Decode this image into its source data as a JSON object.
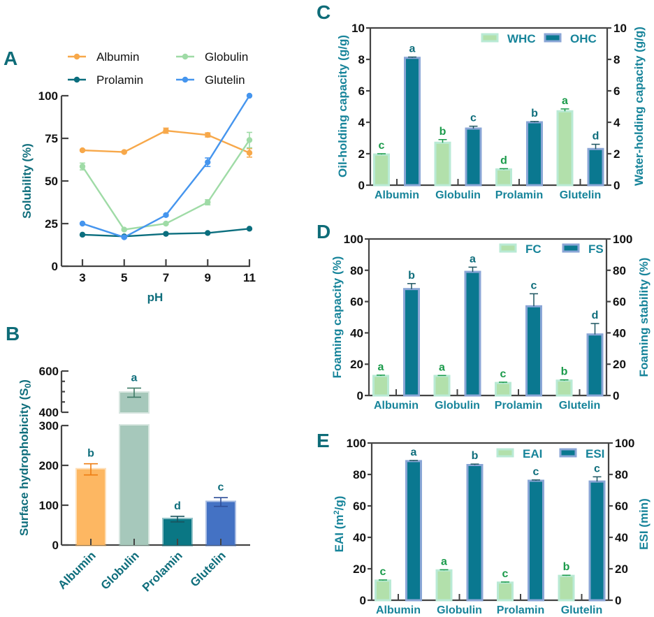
{
  "figure": {
    "panels": [
      "A",
      "B",
      "C",
      "D",
      "E"
    ]
  },
  "chart_data": [
    {
      "id": "A",
      "type": "line",
      "title": "",
      "xlabel": "pH",
      "ylabel": "Solubility (%)",
      "x": [
        3,
        5,
        7,
        9,
        11
      ],
      "xticks": [
        "3",
        "5",
        "7",
        "9",
        "11"
      ],
      "yticks": [
        "0",
        "25",
        "50",
        "75",
        "100"
      ],
      "ylim": [
        0,
        100
      ],
      "legend_position": "top",
      "series": [
        {
          "name": "Albumin",
          "color": "#f7a84a",
          "values": [
            68,
            67,
            79.5,
            77,
            66.5
          ],
          "errors": [
            0.5,
            0.5,
            1.5,
            1.2,
            2.5
          ]
        },
        {
          "name": "Globulin",
          "color": "#9fdba6",
          "values": [
            58.5,
            21.5,
            25,
            37.5,
            74
          ],
          "errors": [
            2,
            0.5,
            0.5,
            1.5,
            4.5
          ]
        },
        {
          "name": "Prolamin",
          "color": "#0b6e7e",
          "values": [
            18.5,
            17.5,
            19,
            19.5,
            22
          ],
          "errors": [
            0.3,
            0.3,
            0.3,
            0.3,
            0.3
          ]
        },
        {
          "name": "Glutelin",
          "color": "#4595ee",
          "values": [
            25,
            17,
            30,
            61,
            100
          ],
          "errors": [
            0.3,
            0.5,
            0.5,
            2.5,
            0.3
          ]
        }
      ]
    },
    {
      "id": "B",
      "type": "bar",
      "title": "",
      "xlabel": "",
      "ylabel": "Surface hydrophobicity (S",
      "ylabel_sub": "0",
      "ylabel_end": ")",
      "categories": [
        "Albumin",
        "Globulin",
        "Prolamin",
        "Glutelin"
      ],
      "values": [
        190,
        495,
        65,
        108
      ],
      "errors": [
        14,
        22,
        7,
        11
      ],
      "letters": [
        "b",
        "a",
        "d",
        "c"
      ],
      "colors": [
        "#fdb762",
        "#a6c8bb",
        "#0a7784",
        "#4472c4"
      ],
      "error_colors": [
        "#ee7d12",
        "#3e7a66",
        "#19545e",
        "#2f4f99"
      ],
      "axis_break": [
        300,
        400
      ],
      "yticks_lower": [
        "0",
        "100",
        "200",
        "300"
      ],
      "yticks_upper": [
        "400",
        "600"
      ],
      "ylim": [
        0,
        600
      ]
    },
    {
      "id": "C",
      "type": "bar",
      "title": "",
      "xlabel": "",
      "ylabel": "Oil-holding capacity (g/g)",
      "ylabel_right": "Water-holding capacity (g/g)",
      "categories": [
        "Albumin",
        "Globulin",
        "Prolamin",
        "Glutelin"
      ],
      "yticks": [
        "0",
        "2",
        "4",
        "6",
        "8",
        "10"
      ],
      "ylim": [
        0,
        10
      ],
      "legend_position": "top-right",
      "series": [
        {
          "name": "WHC",
          "axis": "right",
          "values": [
            1.95,
            2.7,
            1.0,
            4.7
          ],
          "errors": [
            0.05,
            0.2,
            0.05,
            0.15
          ],
          "letters": [
            "c",
            "b",
            "d",
            "a"
          ]
        },
        {
          "name": "OHC",
          "axis": "left",
          "values": [
            8.1,
            3.6,
            4.0,
            2.3
          ],
          "errors": [
            0.05,
            0.15,
            0.05,
            0.3
          ],
          "letters": [
            "a",
            "c",
            "b",
            "d"
          ]
        }
      ]
    },
    {
      "id": "D",
      "type": "bar",
      "title": "",
      "xlabel": "",
      "ylabel": "Foaming capacity (%)",
      "ylabel_right": "Foaming stability (%)",
      "categories": [
        "Albumin",
        "Globulin",
        "Prolamin",
        "Glutelin"
      ],
      "yticks": [
        "0",
        "20",
        "40",
        "60",
        "80",
        "100"
      ],
      "ylim": [
        0,
        100
      ],
      "legend_position": "top-right",
      "series": [
        {
          "name": "FC",
          "axis": "left",
          "values": [
            12.5,
            12.5,
            8,
            9.5
          ],
          "errors": [
            0.5,
            0.3,
            0.5,
            0.5
          ],
          "letters": [
            "a",
            "a",
            "c",
            "b"
          ]
        },
        {
          "name": "FS",
          "axis": "right",
          "values": [
            68,
            79,
            57,
            39
          ],
          "errors": [
            3.5,
            3,
            8,
            7
          ],
          "letters": [
            "b",
            "a",
            "c",
            "d"
          ]
        }
      ]
    },
    {
      "id": "E",
      "type": "bar",
      "title": "",
      "xlabel": "",
      "ylabel": "EAI (m",
      "ylabel_sup": "2",
      "ylabel_end": "/g)",
      "ylabel_right": "ESI (min)",
      "categories": [
        "Albumin",
        "Globulin",
        "Prolamin",
        "Glutelin"
      ],
      "yticks": [
        "0",
        "20",
        "40",
        "60",
        "80",
        "100"
      ],
      "ylim": [
        0,
        100
      ],
      "legend_position": "top-right",
      "series": [
        {
          "name": "EAI",
          "axis": "left",
          "values": [
            12.5,
            19,
            11.2,
            15.5
          ],
          "errors": [
            0.4,
            0.4,
            0.4,
            0.4
          ],
          "letters": [
            "c",
            "a",
            "c",
            "b"
          ]
        },
        {
          "name": "ESI",
          "axis": "right",
          "values": [
            88.5,
            86,
            76,
            75.5
          ],
          "errors": [
            0.4,
            0.6,
            0.5,
            3
          ],
          "letters": [
            "a",
            "b",
            "c",
            "c"
          ]
        }
      ]
    }
  ],
  "styles": {
    "light_bar_fill": "#b2e0ab",
    "light_bar_edge": "#b9ead5",
    "dark_bar_fill": "#0a7890",
    "dark_bar_edge": "#8aa6d6",
    "sig_light": "#1a9a4a",
    "sig_dark": "#0f6e7c"
  }
}
